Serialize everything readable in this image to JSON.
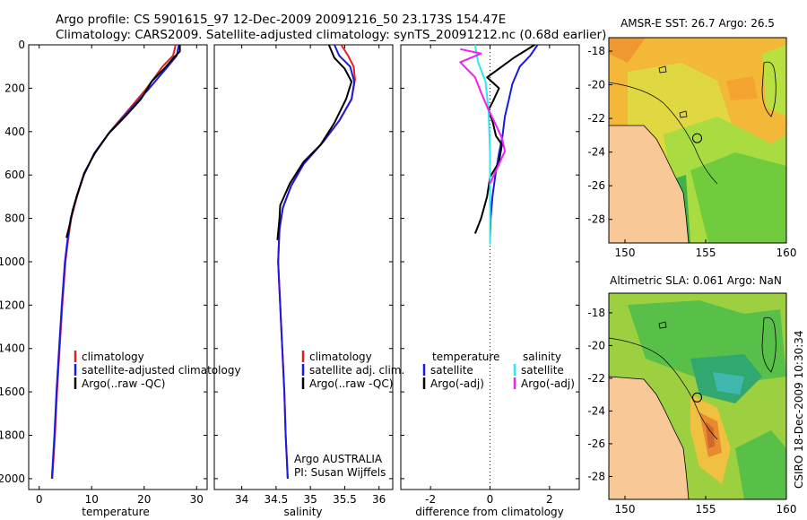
{
  "figure_title": {
    "line1": "Argo profile: CS 5901615_97 12-Dec-2009 20091216_50 23.173S 154.47E",
    "line2": "Climatology: CARS2009. Satellite-adjusted climatology: synTS_20091212.nc (0.68d earlier)"
  },
  "side_label": "CSIRO 18-Dec-2009 10:30:34",
  "colors": {
    "climatology": "#e02020",
    "satellite": "#1a1ae0",
    "argo": "#000000",
    "salinity_satellite": "#30e8f0",
    "salinity_argo": "#f020f0",
    "land": "#f8c896"
  },
  "chart_data": [
    {
      "type": "line",
      "id": "temperature",
      "xlabel": "temperature",
      "ylabel": "",
      "xlim": [
        -2,
        32
      ],
      "ylim": [
        2050,
        0
      ],
      "xticks": [
        0,
        10,
        20,
        30
      ],
      "yticks": [
        0,
        200,
        400,
        600,
        800,
        1000,
        1200,
        1400,
        1600,
        1800,
        2000
      ],
      "legend": [
        "climatology",
        "satellite-adjusted climatology",
        "Argo(..raw -QC)"
      ],
      "series": [
        {
          "name": "climatology",
          "color": "#e02020",
          "points": [
            [
              26.0,
              0
            ],
            [
              25.5,
              50
            ],
            [
              23.5,
              100
            ],
            [
              20.5,
              200
            ],
            [
              17,
              300
            ],
            [
              13.5,
              400
            ],
            [
              10.5,
              500
            ],
            [
              8.5,
              600
            ],
            [
              7.2,
              700
            ],
            [
              6.1,
              800
            ],
            [
              5.5,
              900
            ],
            [
              5.0,
              1000
            ],
            [
              4.4,
              1200
            ],
            [
              3.9,
              1400
            ],
            [
              3.4,
              1600
            ],
            [
              3.0,
              1800
            ],
            [
              2.5,
              2000
            ]
          ]
        },
        {
          "name": "satellite-adjusted climatology",
          "color": "#1a1ae0",
          "points": [
            [
              26.6,
              0
            ],
            [
              26.2,
              50
            ],
            [
              24.5,
              100
            ],
            [
              21,
              200
            ],
            [
              17.3,
              300
            ],
            [
              13.5,
              400
            ],
            [
              10.5,
              500
            ],
            [
              8.5,
              600
            ],
            [
              7.1,
              700
            ],
            [
              6.0,
              800
            ],
            [
              5.4,
              900
            ],
            [
              4.9,
              1000
            ],
            [
              4.3,
              1200
            ],
            [
              3.8,
              1400
            ],
            [
              3.3,
              1600
            ],
            [
              2.9,
              1800
            ],
            [
              2.4,
              2000
            ]
          ]
        },
        {
          "name": "Argo(..raw -QC)",
          "color": "#000000",
          "points": [
            [
              26.8,
              0
            ],
            [
              26.8,
              30
            ],
            [
              25.6,
              60
            ],
            [
              24.2,
              100
            ],
            [
              21.4,
              170
            ],
            [
              19.4,
              250
            ],
            [
              16.4,
              330
            ],
            [
              13.2,
              410
            ],
            [
              10.6,
              500
            ],
            [
              8.6,
              590
            ],
            [
              7.4,
              680
            ],
            [
              6.4,
              760
            ],
            [
              5.8,
              830
            ],
            [
              5.2,
              890
            ]
          ]
        }
      ]
    },
    {
      "type": "line",
      "id": "salinity",
      "xlabel": "salinity",
      "ylabel": "",
      "xlim": [
        33.6,
        36.2
      ],
      "ylim": [
        2050,
        0
      ],
      "xticks": [
        34,
        34.5,
        35,
        35.5,
        36
      ],
      "xticklabels": [
        "34",
        "34.5",
        "35",
        "35.5",
        "36"
      ],
      "yticks": [
        0,
        200,
        400,
        600,
        800,
        1000,
        1200,
        1400,
        1600,
        1800,
        2000
      ],
      "legend": [
        "climatology",
        "satellite adj. clim.",
        "Argo(..raw -QC)"
      ],
      "annotation": {
        "line1": "Argo AUSTRALIA",
        "line2": "PI: Susan Wijffels"
      },
      "series": [
        {
          "name": "climatology",
          "color": "#e02020",
          "points": [
            [
              35.45,
              0
            ],
            [
              35.55,
              50
            ],
            [
              35.63,
              100
            ],
            [
              35.65,
              160
            ],
            [
              35.6,
              250
            ],
            [
              35.42,
              350
            ],
            [
              35.18,
              450
            ],
            [
              34.9,
              550
            ],
            [
              34.72,
              650
            ],
            [
              34.6,
              750
            ],
            [
              34.55,
              850
            ],
            [
              34.53,
              1000
            ],
            [
              34.56,
              1200
            ],
            [
              34.59,
              1400
            ],
            [
              34.62,
              1600
            ],
            [
              34.64,
              1800
            ],
            [
              34.67,
              2000
            ]
          ]
        },
        {
          "name": "satellite adj. clim.",
          "color": "#1a1ae0",
          "points": [
            [
              35.35,
              0
            ],
            [
              35.42,
              50
            ],
            [
              35.58,
              100
            ],
            [
              35.64,
              170
            ],
            [
              35.6,
              250
            ],
            [
              35.42,
              350
            ],
            [
              35.18,
              450
            ],
            [
              34.9,
              550
            ],
            [
              34.72,
              650
            ],
            [
              34.6,
              750
            ],
            [
              34.55,
              850
            ],
            [
              34.53,
              1000
            ],
            [
              34.56,
              1200
            ],
            [
              34.59,
              1400
            ],
            [
              34.62,
              1600
            ],
            [
              34.64,
              1800
            ],
            [
              34.67,
              2000
            ]
          ]
        },
        {
          "name": "Argo(..raw -QC)",
          "color": "#000000",
          "points": [
            [
              35.27,
              0
            ],
            [
              35.35,
              60
            ],
            [
              35.5,
              110
            ],
            [
              35.6,
              170
            ],
            [
              35.52,
              250
            ],
            [
              35.35,
              360
            ],
            [
              35.15,
              460
            ],
            [
              34.9,
              540
            ],
            [
              34.7,
              640
            ],
            [
              34.56,
              740
            ],
            [
              34.55,
              800
            ],
            [
              34.52,
              900
            ]
          ]
        }
      ]
    },
    {
      "type": "line",
      "id": "difference",
      "xlabel": "difference from climatology",
      "ylabel": "",
      "xlim": [
        -3,
        3
      ],
      "ylim": [
        2050,
        0
      ],
      "xticks": [
        -2,
        0,
        2
      ],
      "yticks": [
        0,
        200,
        400,
        600,
        800,
        1000,
        1200,
        1400,
        1600,
        1800,
        2000
      ],
      "zero_line": 0,
      "legend_temperature": {
        "heading": "temperature",
        "items": [
          "satellite",
          "Argo(-adj)"
        ]
      },
      "legend_salinity": {
        "heading": "salinity",
        "items": [
          "satellite",
          "Argo(-adj)"
        ]
      },
      "series": [
        {
          "name": "temperature satellite",
          "color": "#1a1ae0",
          "points": [
            [
              1.6,
              0
            ],
            [
              1.35,
              50
            ],
            [
              1.0,
              100
            ],
            [
              0.75,
              180
            ],
            [
              0.62,
              260
            ],
            [
              0.5,
              330
            ],
            [
              0.42,
              420
            ],
            [
              0.3,
              500
            ],
            [
              0.18,
              600
            ],
            [
              0.08,
              700
            ],
            [
              0.02,
              800
            ],
            [
              0.0,
              900
            ]
          ]
        },
        {
          "name": "temperature Argo(-adj)",
          "color": "#000000",
          "points": [
            [
              1.5,
              0
            ],
            [
              0.8,
              60
            ],
            [
              0.4,
              100
            ],
            [
              -0.1,
              150
            ],
            [
              0.3,
              200
            ],
            [
              0.1,
              260
            ],
            [
              -0.05,
              300
            ],
            [
              0.1,
              360
            ],
            [
              0.2,
              420
            ],
            [
              0.4,
              460
            ],
            [
              0.3,
              540
            ],
            [
              0.0,
              610
            ],
            [
              -0.1,
              700
            ],
            [
              -0.3,
              800
            ],
            [
              -0.5,
              870
            ]
          ]
        },
        {
          "name": "salinity satellite",
          "color": "#30e8f0",
          "points": [
            [
              -0.5,
              0
            ],
            [
              -0.4,
              80
            ],
            [
              -0.15,
              170
            ],
            [
              -0.05,
              300
            ],
            [
              0.0,
              500
            ],
            [
              0.0,
              700
            ],
            [
              0.0,
              920
            ]
          ]
        },
        {
          "name": "salinity Argo(-adj)",
          "color": "#f020f0",
          "points": [
            [
              -1.0,
              20
            ],
            [
              -0.3,
              40
            ],
            [
              -1.0,
              80
            ],
            [
              -0.5,
              150
            ],
            [
              -0.3,
              220
            ],
            [
              -0.05,
              300
            ],
            [
              0.2,
              370
            ],
            [
              0.4,
              430
            ],
            [
              0.5,
              490
            ],
            [
              0.3,
              550
            ],
            [
              0.0,
              640
            ]
          ]
        }
      ]
    },
    {
      "type": "heatmap",
      "id": "sst_map",
      "title": "AMSR-E SST: 26.7 Argo: 26.5",
      "xlim": [
        149,
        160
      ],
      "ylim": [
        -29.4,
        -17.2
      ],
      "xticks": [
        150,
        155,
        160
      ],
      "yticks": [
        -18,
        -20,
        -22,
        -24,
        -26,
        -28
      ],
      "argo_position": [
        154.47,
        -23.17
      ],
      "palette": [
        "#f4a430",
        "#f4c030",
        "#e8e040",
        "#b8e040",
        "#7cd03c",
        "#40b84a"
      ]
    },
    {
      "type": "heatmap",
      "id": "sla_map",
      "title": "Altimetric SLA: 0.061 Argo: NaN",
      "xlim": [
        149,
        160
      ],
      "ylim": [
        -29.4,
        -16.8
      ],
      "xticks": [
        150,
        155,
        160
      ],
      "yticks": [
        -18,
        -20,
        -22,
        -24,
        -26,
        -28
      ],
      "argo_position": [
        154.47,
        -23.17
      ],
      "palette": [
        "#e06a2a",
        "#f0a040",
        "#d8d840",
        "#9cd040",
        "#58c048",
        "#30a870",
        "#40b8b0"
      ]
    }
  ]
}
